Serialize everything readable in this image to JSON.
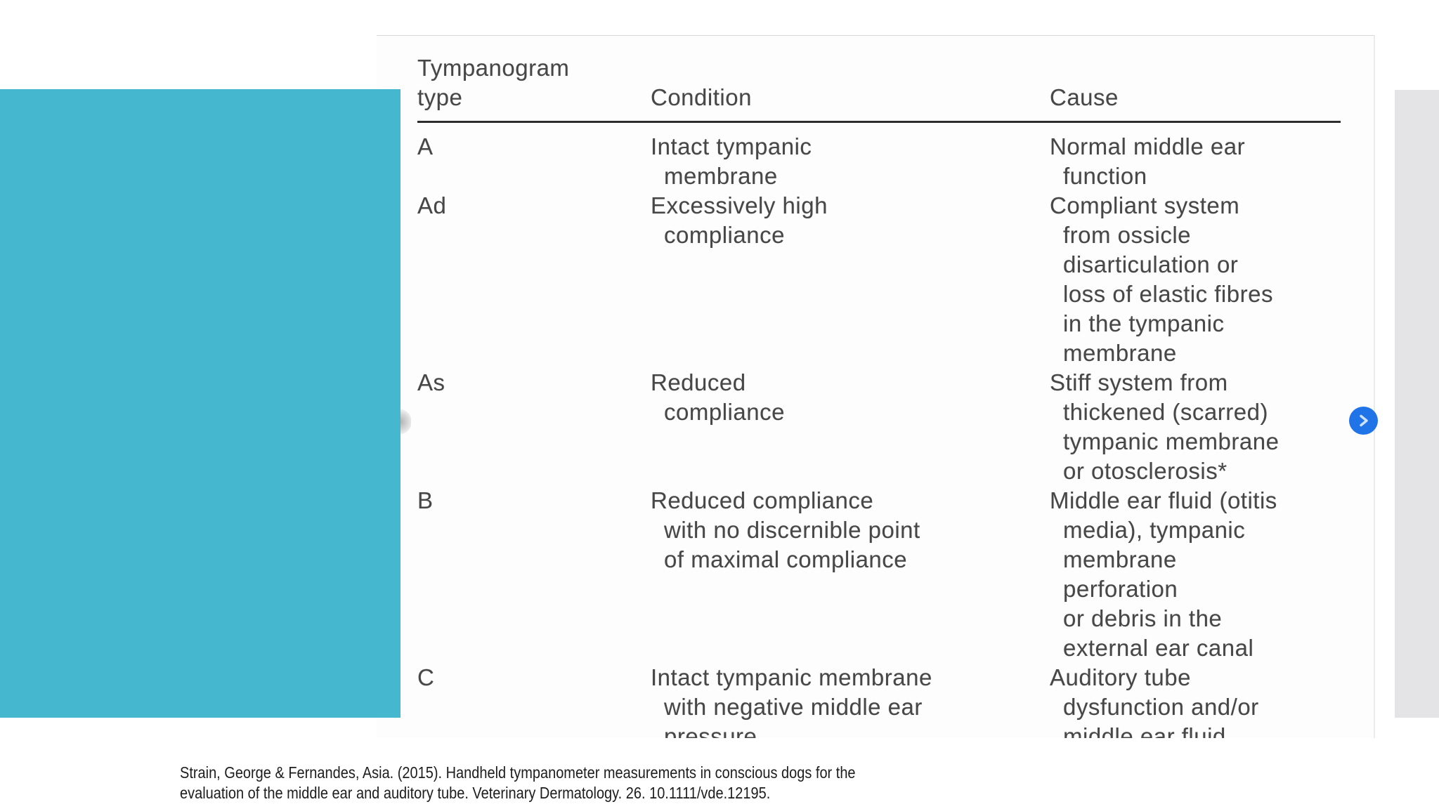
{
  "page": {
    "background_color": "#ffffff",
    "accent_rect_color": "#45b7ce",
    "side_strip_color": "#e4e4e7",
    "next_button_color": "#2173e8"
  },
  "table": {
    "headers": {
      "type_lines": [
        "Tympanogram",
        "type"
      ],
      "condition": "Condition",
      "cause": "Cause"
    },
    "rows": [
      {
        "type": "A",
        "condition": [
          "Intact tympanic",
          "membrane"
        ],
        "cause": [
          "Normal middle ear",
          "function"
        ]
      },
      {
        "type": "Ad",
        "condition": [
          "Excessively high",
          "compliance"
        ],
        "cause": [
          "Compliant system",
          "from ossicle",
          "disarticulation or",
          "loss of elastic fibres",
          "in the tympanic",
          "membrane"
        ]
      },
      {
        "type": "As",
        "condition": [
          "Reduced",
          "compliance"
        ],
        "cause": [
          "Stiff system from",
          "thickened (scarred)",
          "tympanic membrane",
          "or otosclerosis*"
        ]
      },
      {
        "type": "B",
        "condition": [
          "Reduced compliance",
          "with no discernible point",
          "of maximal compliance"
        ],
        "cause": [
          "Middle ear fluid (otitis",
          "media), tympanic",
          "membrane",
          "perforation",
          "or debris in the",
          "external ear canal"
        ]
      },
      {
        "type": "C",
        "condition": [
          "Intact tympanic membrane",
          "with negative middle ear",
          "pressure"
        ],
        "cause": [
          "Auditory tube",
          "dysfunction and/or",
          "middle ear fluid"
        ]
      }
    ]
  },
  "nav": {
    "next_icon": "chevron-right"
  },
  "citation": {
    "lines": [
      "Strain, George & Fernandes, Asia. (2015). Handheld tympanometer measurements in conscious dogs for the",
      "evaluation of the middle ear and auditory tube. Veterinary Dermatology. 26. 10.1111/vde.12195."
    ]
  }
}
